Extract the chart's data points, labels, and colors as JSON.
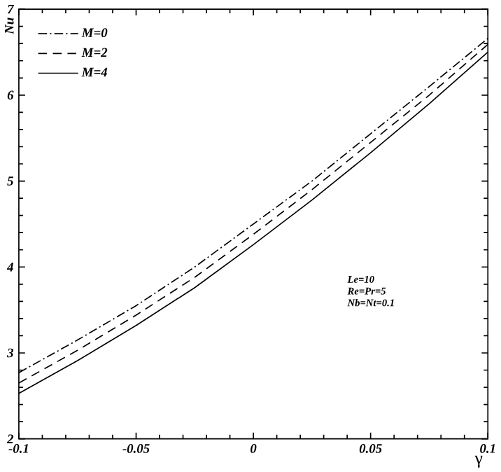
{
  "chart_data": {
    "type": "line",
    "xlabel": "γ",
    "ylabel": "Nu",
    "x": [
      -0.1,
      -0.075,
      -0.05,
      -0.025,
      0,
      0.025,
      0.05,
      0.075,
      0.1
    ],
    "series": [
      {
        "name": "M=0",
        "color": "#000000",
        "line_style": "dashdot",
        "values": [
          2.77,
          3.15,
          3.55,
          4.0,
          4.5,
          5.0,
          5.55,
          6.1,
          6.66
        ]
      },
      {
        "name": "M=2",
        "color": "#000000",
        "line_style": "dashed",
        "values": [
          2.65,
          3.03,
          3.44,
          3.88,
          4.38,
          4.9,
          5.45,
          6.0,
          6.59
        ]
      },
      {
        "name": "M=4",
        "color": "#000000",
        "line_style": "solid",
        "values": [
          2.53,
          2.91,
          3.32,
          3.76,
          4.26,
          4.78,
          5.33,
          5.9,
          6.5
        ]
      }
    ],
    "xlim": [
      -0.1,
      0.1
    ],
    "xticks": [
      -0.1,
      -0.05,
      0,
      0.05,
      0.1
    ],
    "ylim": [
      2,
      7
    ],
    "yticks": [
      2,
      3,
      4,
      5,
      6,
      7
    ],
    "grid": false,
    "legend": "top left",
    "marker": "none",
    "annotations": [
      "Le=10",
      "Re=Pr=5",
      "Nb=Nt=0.1"
    ]
  }
}
